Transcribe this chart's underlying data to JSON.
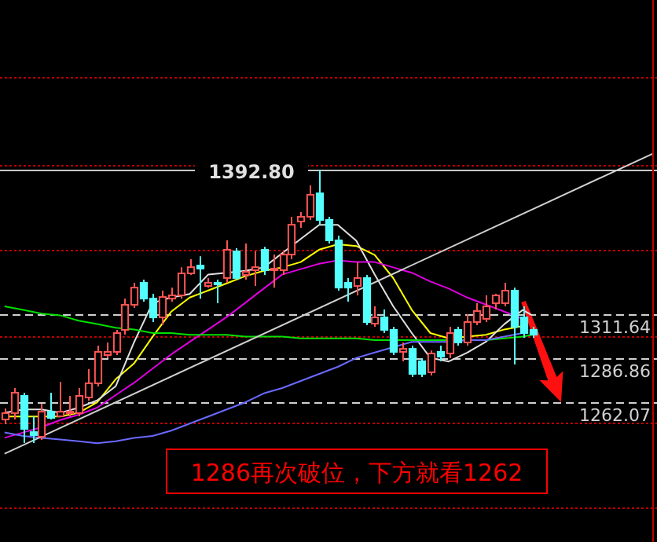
{
  "chart_data": {
    "type": "candlestick",
    "categories": [
      null,
      null,
      null,
      null,
      null,
      null,
      null,
      null,
      null,
      null,
      null,
      null,
      null,
      null,
      null,
      null,
      null,
      null,
      null,
      null,
      null,
      null,
      null,
      null,
      null,
      null,
      null,
      null,
      null,
      null,
      null,
      null,
      null,
      null,
      null,
      null,
      null,
      null,
      null,
      null,
      null,
      null,
      null,
      null,
      null,
      null,
      null,
      null,
      null,
      null,
      null,
      null,
      null,
      null,
      null,
      null,
      null,
      null,
      null,
      null,
      null,
      null,
      null,
      null,
      null,
      null,
      null,
      null,
      null,
      null,
      null
    ],
    "ohlc": [
      [
        1252.3,
        1258.5,
        1249.7,
        1255.9
      ],
      [
        1255.9,
        1270.0,
        1252.3,
        1267.4
      ],
      [
        1265.6,
        1267.4,
        1239.0,
        1247.0
      ],
      [
        1245.2,
        1254.1,
        1239.0,
        1243.5
      ],
      [
        1242.6,
        1261.2,
        1240.8,
        1256.7
      ],
      [
        1256.7,
        1267.4,
        1252.3,
        1253.2
      ],
      [
        1254.1,
        1273.5,
        1254.1,
        1256.7
      ],
      [
        1255.9,
        1265.6,
        1254.1,
        1256.7
      ],
      [
        1255.9,
        1270.0,
        1254.1,
        1265.6
      ],
      [
        1264.7,
        1280.6,
        1262.9,
        1272.7
      ],
      [
        1272.7,
        1293.9,
        1270.9,
        1290.4
      ],
      [
        1288.6,
        1295.7,
        1286.8,
        1290.4
      ],
      [
        1290.4,
        1302.8,
        1288.6,
        1301.0
      ],
      [
        1302.8,
        1320.4,
        1300.1,
        1316.9
      ],
      [
        1316.9,
        1329.3,
        1315.1,
        1326.6
      ],
      [
        1329.3,
        1331.1,
        1318.7,
        1320.4
      ],
      [
        1320.4,
        1323.1,
        1307.2,
        1309.8
      ],
      [
        1309.8,
        1324.9,
        1305.4,
        1321.3
      ],
      [
        1320.4,
        1326.6,
        1318.7,
        1322.2
      ],
      [
        1322.2,
        1338.1,
        1320.4,
        1334.6
      ],
      [
        1334.6,
        1342.6,
        1333.7,
        1338.1
      ],
      [
        1339.0,
        1344.3,
        1320.4,
        1337.3
      ],
      [
        1327.5,
        1332.0,
        1326.6,
        1329.3
      ],
      [
        1329.3,
        1331.1,
        1317.8,
        1328.4
      ],
      [
        1332.0,
        1353.2,
        1329.3,
        1347.9
      ],
      [
        1347.0,
        1348.8,
        1331.1,
        1332.0
      ],
      [
        1333.7,
        1351.4,
        1331.1,
        1335.5
      ],
      [
        1336.4,
        1347.0,
        1327.5,
        1338.1
      ],
      [
        1347.9,
        1349.6,
        1333.7,
        1336.4
      ],
      [
        1336.4,
        1345.2,
        1326.6,
        1337.3
      ],
      [
        1336.4,
        1347.0,
        1333.7,
        1345.2
      ],
      [
        1345.2,
        1366.5,
        1342.6,
        1362.0
      ],
      [
        1363.8,
        1369.1,
        1360.3,
        1366.5
      ],
      [
        1366.5,
        1384.2,
        1364.7,
        1378.9
      ],
      [
        1379.7,
        1392.8,
        1362.0,
        1364.7
      ],
      [
        1364.7,
        1366.5,
        1351.4,
        1353.2
      ],
      [
        1353.2,
        1355.9,
        1324.9,
        1326.6
      ],
      [
        1329.3,
        1332.0,
        1318.7,
        1326.6
      ],
      [
        1327.5,
        1340.8,
        1322.2,
        1332.0
      ],
      [
        1332.0,
        1333.7,
        1305.4,
        1307.2
      ],
      [
        1306.3,
        1316.0,
        1304.5,
        1309.8
      ],
      [
        1309.8,
        1314.3,
        1301.0,
        1302.8
      ],
      [
        1302.8,
        1304.5,
        1288.6,
        1290.4
      ],
      [
        1290.4,
        1295.7,
        1285.1,
        1292.1
      ],
      [
        1292.1,
        1293.9,
        1276.2,
        1278.0
      ],
      [
        1285.1,
        1286.8,
        1276.2,
        1278.0
      ],
      [
        1278.9,
        1291.2,
        1277.1,
        1289.5
      ],
      [
        1290.4,
        1293.9,
        1285.1,
        1287.7
      ],
      [
        1289.5,
        1304.5,
        1286.8,
        1301.0
      ],
      [
        1302.8,
        1304.5,
        1293.9,
        1295.7
      ],
      [
        1295.7,
        1311.6,
        1293.9,
        1307.2
      ],
      [
        1307.2,
        1317.8,
        1305.4,
        1313.4
      ],
      [
        1309.0,
        1322.2,
        1307.2,
        1316.0
      ],
      [
        1317.8,
        1323.1,
        1314.3,
        1322.2
      ],
      [
        1317.8,
        1329.3,
        1316.0,
        1324.9
      ],
      [
        1324.9,
        1326.6,
        1283.3,
        1304.5
      ],
      [
        1309.8,
        1316.0,
        1298.3,
        1301.0
      ],
      [
        1302.8,
        1304.5,
        1298.3,
        1300.1
      ],
      null,
      null,
      null,
      null,
      null,
      null,
      null,
      null,
      null,
      null,
      null,
      null,
      null
    ],
    "series": [
      {
        "type": "line",
        "color": "#ffff00",
        "values": [
          1254,
          null,
          1254,
          null,
          1254,
          null,
          1254,
          null,
          1256,
          null,
          1262,
          null,
          1275,
          null,
          1284,
          null,
          1299,
          null,
          1313,
          null,
          1321,
          null,
          1325,
          null,
          1329,
          null,
          1333,
          null,
          1336,
          null,
          1338,
          null,
          1341,
          null,
          1348,
          null,
          1351,
          null,
          1350,
          null,
          1345,
          null,
          1332,
          null,
          1314,
          null,
          1301,
          null,
          1298,
          null,
          1299,
          null,
          1300,
          null,
          1303,
          null,
          1305,
          null,
          null,
          null,
          null,
          null,
          null,
          null,
          null,
          null,
          null,
          null,
          null,
          null,
          null
        ]
      },
      {
        "type": "line",
        "color": "#e0e0e0",
        "values": [
          1256,
          null,
          1258,
          null,
          1258,
          null,
          1256,
          null,
          1259,
          null,
          1263,
          null,
          1271,
          null,
          1296,
          null,
          1318,
          null,
          1321,
          null,
          1323,
          null,
          1334,
          null,
          1335,
          null,
          1336,
          null,
          1338,
          null,
          1346,
          null,
          1354,
          null,
          1362,
          null,
          1362,
          null,
          1353,
          null,
          1334,
          null,
          1316,
          null,
          1301,
          null,
          1287,
          null,
          1285,
          null,
          1290,
          null,
          1296,
          null,
          1306,
          null,
          1314,
          1311,
          null,
          null,
          null,
          null,
          null,
          null,
          null,
          null,
          null,
          null,
          null,
          null,
          null
        ]
      },
      {
        "type": "line",
        "color": "#e000e0",
        "values": [
          1242,
          null,
          1245,
          null,
          1248,
          null,
          1252,
          null,
          1255,
          null,
          1259,
          null,
          1266,
          null,
          1273,
          null,
          1281,
          null,
          1289,
          null,
          1296,
          null,
          1303,
          null,
          1310,
          null,
          1318,
          null,
          1326,
          null,
          1334,
          null,
          1337,
          null,
          1340,
          null,
          1342,
          null,
          1341,
          null,
          1341,
          null,
          1338,
          null,
          1335,
          null,
          1330,
          null,
          1326,
          null,
          1321,
          null,
          1317,
          null,
          1313,
          null,
          1309,
          null,
          null,
          null,
          null,
          null,
          null,
          null,
          null,
          null,
          null,
          null,
          null,
          null,
          null
        ]
      },
      {
        "type": "line",
        "color": "#00e000",
        "values": [
          1316,
          null,
          1314,
          null,
          1312,
          null,
          1311,
          null,
          1308,
          null,
          1306,
          null,
          1304,
          null,
          1303,
          null,
          1301,
          null,
          1301,
          null,
          1300,
          null,
          1300,
          null,
          1300,
          null,
          1299,
          null,
          1299,
          null,
          1299,
          null,
          1298,
          null,
          1298,
          null,
          1298,
          null,
          1298,
          null,
          1297,
          null,
          1297,
          null,
          1297,
          null,
          1297,
          null,
          1297,
          null,
          1297,
          null,
          1297,
          null,
          1298,
          null,
          1299,
          1300,
          null,
          null,
          null,
          null,
          null,
          null,
          null,
          null,
          null,
          null,
          null,
          null,
          null
        ]
      },
      {
        "type": "line",
        "color": "#6a6aff",
        "values": [
          1245,
          null,
          1243,
          null,
          1242,
          null,
          1241,
          null,
          1240,
          null,
          1239,
          null,
          1240,
          null,
          1242,
          null,
          1243,
          null,
          1246,
          null,
          1250,
          null,
          1254,
          null,
          1258,
          null,
          1262,
          null,
          1267,
          null,
          1270,
          null,
          1274,
          null,
          1278,
          null,
          1282,
          null,
          1287,
          null,
          1290,
          null,
          1293,
          null,
          1296,
          null,
          1296,
          null,
          1296,
          null,
          1297,
          null,
          1297,
          null,
          1299,
          null,
          1301,
          null,
          null,
          null,
          null,
          null,
          null,
          null,
          null,
          null,
          null,
          null,
          null,
          null,
          null
        ]
      },
      {
        "type": "line",
        "color": "#d0d0d0",
        "values": [
          1233,
          null,
          null,
          null,
          null,
          null,
          null,
          null,
          null,
          null,
          null,
          null,
          null,
          null,
          null,
          null,
          null,
          null,
          null,
          null,
          null,
          null,
          null,
          null,
          null,
          null,
          null,
          null,
          null,
          null,
          null,
          null,
          null,
          null,
          null,
          null,
          null,
          null,
          null,
          null,
          null,
          null,
          null,
          null,
          null,
          null,
          null,
          null,
          null,
          null,
          null,
          null,
          null,
          null,
          null,
          null,
          null,
          null,
          null,
          null,
          null,
          null,
          null,
          null,
          null,
          null,
          null,
          null,
          null,
          null,
          1402
        ]
      }
    ],
    "ylim": [
      1183.3,
      1488.6
    ],
    "yticks": [
      1311.64,
      1286.86,
      1262.07
    ],
    "grid": "y",
    "ref_lines": [
      {
        "axis": "y",
        "value": 1392.8,
        "label": "1392.80",
        "color": "#c8c8c8",
        "line_style": "solid"
      },
      {
        "axis": "y",
        "value": 1445.3,
        "color": "#c00000",
        "line_style": "dotted"
      },
      {
        "axis": "y",
        "value": 1395.7,
        "color": "#c00000",
        "line_style": "dotted"
      },
      {
        "axis": "y",
        "value": 1347.9,
        "color": "#c00000",
        "line_style": "dotted"
      },
      {
        "axis": "y",
        "value": 1299.25,
        "color": "#c00000",
        "line_style": "dotted"
      },
      {
        "axis": "y",
        "value": 1250.6,
        "color": "#c00000",
        "line_style": "dotted"
      },
      {
        "axis": "y",
        "value": 1202.8,
        "color": "#c00000",
        "line_style": "dotted"
      }
    ],
    "annotations": [
      "1286再次破位，下方就看1262"
    ]
  }
}
